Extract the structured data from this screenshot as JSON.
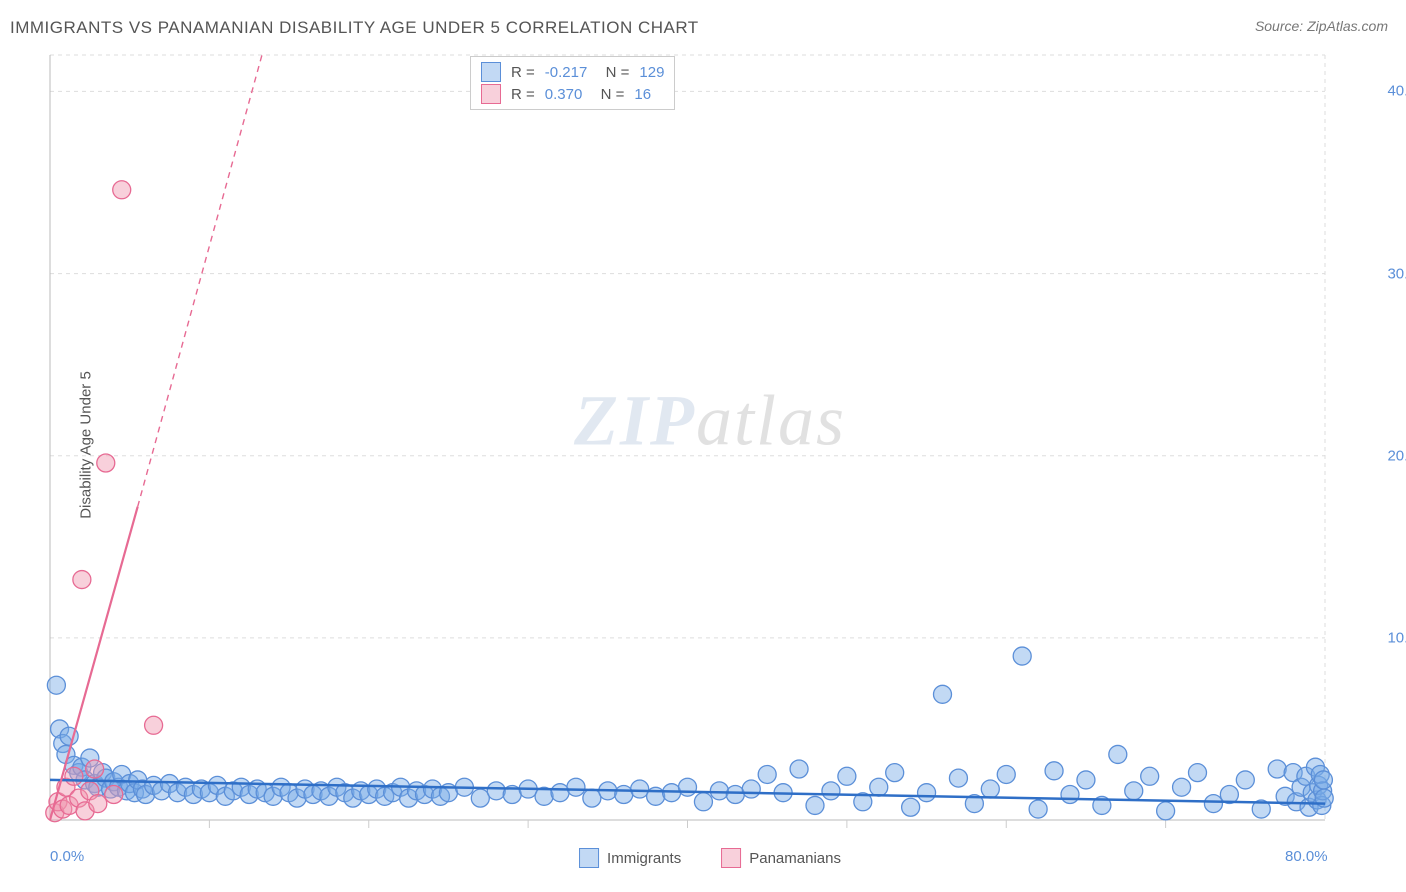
{
  "title": "IMMIGRANTS VS PANAMANIAN DISABILITY AGE UNDER 5 CORRELATION CHART",
  "source": "Source: ZipAtlas.com",
  "ylabel": "Disability Age Under 5",
  "watermark_zip": "ZIP",
  "watermark_atlas": "atlas",
  "chart": {
    "type": "scatter",
    "background_color": "#ffffff",
    "grid_color": "#dddddd",
    "axis_color": "#bbbbbb",
    "tick_color": "#cccccc",
    "xlim": [
      0,
      80
    ],
    "ylim": [
      0,
      42
    ],
    "xticks_major": [
      0,
      80
    ],
    "xticks_minor": [
      10,
      20,
      30,
      40,
      50,
      60,
      70
    ],
    "yticks": [
      10,
      20,
      30,
      40
    ],
    "xtick_labels": {
      "0": "0.0%",
      "80": "80.0%"
    },
    "ytick_labels": {
      "10": "10.0%",
      "20": "20.0%",
      "30": "30.0%",
      "40": "40.0%"
    },
    "tick_label_color": "#5b8fd8",
    "tick_label_fontsize": 15,
    "marker_radius": 9,
    "marker_stroke_width": 1.3,
    "series": [
      {
        "name": "Immigrants",
        "fill": "rgba(120,170,230,0.45)",
        "stroke": "#5b8fd8",
        "r_value": "-0.217",
        "n_value": "129",
        "trend": {
          "x1": 0,
          "y1": 2.2,
          "x2": 80,
          "y2": 0.9,
          "color": "#2f6fc7",
          "width": 2.5
        },
        "points": [
          [
            0.4,
            7.4
          ],
          [
            0.6,
            5.0
          ],
          [
            0.8,
            4.2
          ],
          [
            1.0,
            3.6
          ],
          [
            1.2,
            4.6
          ],
          [
            1.5,
            3.0
          ],
          [
            1.8,
            2.6
          ],
          [
            2.0,
            2.9
          ],
          [
            2.2,
            2.2
          ],
          [
            2.5,
            3.4
          ],
          [
            2.8,
            2.0
          ],
          [
            3.0,
            1.8
          ],
          [
            3.3,
            2.6
          ],
          [
            3.5,
            2.3
          ],
          [
            3.8,
            1.7
          ],
          [
            4.0,
            2.1
          ],
          [
            4.3,
            1.8
          ],
          [
            4.5,
            2.5
          ],
          [
            4.8,
            1.6
          ],
          [
            5.0,
            2.0
          ],
          [
            5.3,
            1.5
          ],
          [
            5.5,
            2.2
          ],
          [
            5.8,
            1.7
          ],
          [
            6.0,
            1.4
          ],
          [
            6.5,
            1.9
          ],
          [
            7.0,
            1.6
          ],
          [
            7.5,
            2.0
          ],
          [
            8.0,
            1.5
          ],
          [
            8.5,
            1.8
          ],
          [
            9.0,
            1.4
          ],
          [
            9.5,
            1.7
          ],
          [
            10.0,
            1.5
          ],
          [
            10.5,
            1.9
          ],
          [
            11.0,
            1.3
          ],
          [
            11.5,
            1.6
          ],
          [
            12.0,
            1.8
          ],
          [
            12.5,
            1.4
          ],
          [
            13.0,
            1.7
          ],
          [
            13.5,
            1.5
          ],
          [
            14.0,
            1.3
          ],
          [
            14.5,
            1.8
          ],
          [
            15.0,
            1.5
          ],
          [
            15.5,
            1.2
          ],
          [
            16.0,
            1.7
          ],
          [
            16.5,
            1.4
          ],
          [
            17.0,
            1.6
          ],
          [
            17.5,
            1.3
          ],
          [
            18.0,
            1.8
          ],
          [
            18.5,
            1.5
          ],
          [
            19.0,
            1.2
          ],
          [
            19.5,
            1.6
          ],
          [
            20.0,
            1.4
          ],
          [
            20.5,
            1.7
          ],
          [
            21.0,
            1.3
          ],
          [
            21.5,
            1.5
          ],
          [
            22.0,
            1.8
          ],
          [
            22.5,
            1.2
          ],
          [
            23.0,
            1.6
          ],
          [
            23.5,
            1.4
          ],
          [
            24.0,
            1.7
          ],
          [
            24.5,
            1.3
          ],
          [
            25.0,
            1.5
          ],
          [
            26.0,
            1.8
          ],
          [
            27.0,
            1.2
          ],
          [
            28.0,
            1.6
          ],
          [
            29.0,
            1.4
          ],
          [
            30.0,
            1.7
          ],
          [
            31.0,
            1.3
          ],
          [
            32.0,
            1.5
          ],
          [
            33.0,
            1.8
          ],
          [
            34.0,
            1.2
          ],
          [
            35.0,
            1.6
          ],
          [
            36.0,
            1.4
          ],
          [
            37.0,
            1.7
          ],
          [
            38.0,
            1.3
          ],
          [
            39.0,
            1.5
          ],
          [
            40.0,
            1.8
          ],
          [
            41.0,
            1.0
          ],
          [
            42.0,
            1.6
          ],
          [
            43.0,
            1.4
          ],
          [
            44.0,
            1.7
          ],
          [
            45.0,
            2.5
          ],
          [
            46.0,
            1.5
          ],
          [
            47.0,
            2.8
          ],
          [
            48.0,
            0.8
          ],
          [
            49.0,
            1.6
          ],
          [
            50.0,
            2.4
          ],
          [
            51.0,
            1.0
          ],
          [
            52.0,
            1.8
          ],
          [
            53.0,
            2.6
          ],
          [
            54.0,
            0.7
          ],
          [
            55.0,
            1.5
          ],
          [
            56.0,
            6.9
          ],
          [
            57.0,
            2.3
          ],
          [
            58.0,
            0.9
          ],
          [
            59.0,
            1.7
          ],
          [
            60.0,
            2.5
          ],
          [
            61.0,
            9.0
          ],
          [
            62.0,
            0.6
          ],
          [
            63.0,
            2.7
          ],
          [
            64.0,
            1.4
          ],
          [
            65.0,
            2.2
          ],
          [
            66.0,
            0.8
          ],
          [
            67.0,
            3.6
          ],
          [
            68.0,
            1.6
          ],
          [
            69.0,
            2.4
          ],
          [
            70.0,
            0.5
          ],
          [
            71.0,
            1.8
          ],
          [
            72.0,
            2.6
          ],
          [
            73.0,
            0.9
          ],
          [
            74.0,
            1.4
          ],
          [
            75.0,
            2.2
          ],
          [
            76.0,
            0.6
          ],
          [
            77.0,
            2.8
          ],
          [
            77.5,
            1.3
          ],
          [
            78.0,
            2.6
          ],
          [
            78.2,
            1.0
          ],
          [
            78.5,
            1.8
          ],
          [
            78.8,
            2.4
          ],
          [
            79.0,
            0.7
          ],
          [
            79.2,
            1.5
          ],
          [
            79.4,
            2.9
          ],
          [
            79.5,
            1.1
          ],
          [
            79.6,
            1.9
          ],
          [
            79.7,
            2.5
          ],
          [
            79.8,
            0.8
          ],
          [
            79.85,
            1.6
          ],
          [
            79.9,
            2.2
          ],
          [
            79.95,
            1.2
          ]
        ]
      },
      {
        "name": "Panamanians",
        "fill": "rgba(240,150,175,0.45)",
        "stroke": "#e76a93",
        "r_value": "0.370",
        "n_value": "16",
        "trend_segments": [
          {
            "x1": 0,
            "y1": 0,
            "x2": 5.5,
            "y2": 17.2,
            "dash": "",
            "width": 2.2
          },
          {
            "x1": 5.5,
            "y1": 17.2,
            "x2": 13.3,
            "y2": 42,
            "dash": "6 5",
            "width": 1.4
          }
        ],
        "trend_color": "#e76a93",
        "points": [
          [
            0.3,
            0.4
          ],
          [
            0.5,
            1.0
          ],
          [
            0.8,
            0.6
          ],
          [
            1.0,
            1.8
          ],
          [
            1.2,
            0.8
          ],
          [
            1.5,
            2.4
          ],
          [
            1.8,
            1.2
          ],
          [
            2.0,
            13.2
          ],
          [
            2.2,
            0.5
          ],
          [
            2.5,
            1.6
          ],
          [
            2.8,
            2.8
          ],
          [
            3.0,
            0.9
          ],
          [
            3.5,
            19.6
          ],
          [
            4.0,
            1.4
          ],
          [
            4.5,
            34.6
          ],
          [
            6.5,
            5.2
          ]
        ]
      }
    ]
  },
  "legend_top": [
    {
      "swatch_fill": "rgba(120,170,230,0.45)",
      "swatch_stroke": "#5b8fd8",
      "r": "-0.217",
      "n": "129"
    },
    {
      "swatch_fill": "rgba(240,150,175,0.45)",
      "swatch_stroke": "#e76a93",
      "r": "0.370",
      "n": "16"
    }
  ],
  "legend_bottom": [
    {
      "label": "Immigrants",
      "swatch_fill": "rgba(120,170,230,0.45)",
      "swatch_stroke": "#5b8fd8"
    },
    {
      "label": "Panamanians",
      "swatch_fill": "rgba(240,150,175,0.45)",
      "swatch_stroke": "#e76a93"
    }
  ]
}
